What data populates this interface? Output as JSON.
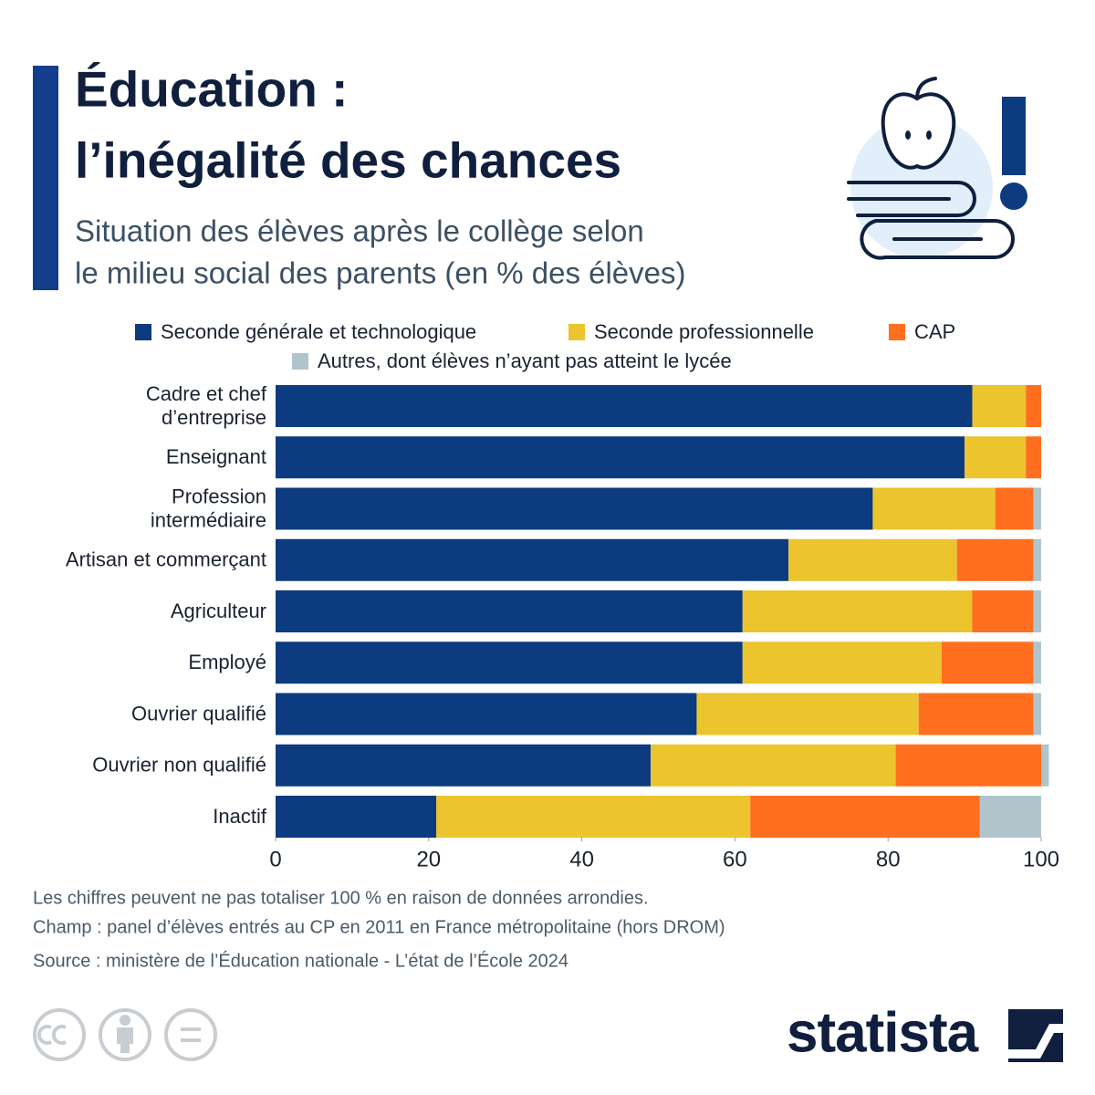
{
  "chart_data": {
    "type": "stacked_bar_horizontal",
    "title_lines": [
      "Éducation :",
      "l’inégalité des chances"
    ],
    "subtitle_lines": [
      "Situation des élèves après le collège selon",
      "le milieu social des parents (en % des élèves)"
    ],
    "categories": [
      [
        "Cadre et chef",
        "d’entreprise"
      ],
      [
        "Enseignant"
      ],
      [
        "Profession",
        "intermédiaire"
      ],
      [
        "Artisan et commerçant"
      ],
      [
        "Agriculteur"
      ],
      [
        "Employé"
      ],
      [
        "Ouvrier qualifié"
      ],
      [
        "Ouvrier non qualifié"
      ],
      [
        "Inactif"
      ]
    ],
    "series": [
      {
        "name": "Seconde générale et technologique",
        "color": "#0d3b7f",
        "values": [
          91,
          90,
          78,
          67,
          61,
          61,
          55,
          49,
          21
        ]
      },
      {
        "name": "Seconde professionnelle",
        "color": "#ebc42e",
        "values": [
          7,
          8,
          16,
          22,
          30,
          26,
          29,
          32,
          41
        ]
      },
      {
        "name": "CAP",
        "color": "#ff6f1f",
        "values": [
          2,
          2,
          5,
          10,
          8,
          12,
          15,
          19,
          30
        ]
      },
      {
        "name": "Autres, dont élèves n’ayant pas atteint le lycée",
        "color": "#b0c4cc",
        "values": [
          0,
          0,
          1,
          1,
          1,
          1,
          1,
          1,
          8
        ]
      }
    ],
    "xlim": [
      0,
      100
    ],
    "xticks": [
      0,
      20,
      40,
      60,
      80,
      100
    ],
    "notes": [
      "Les chiffres peuvent ne pas totaliser 100 % en raison de données arrondies.",
      "Champ : panel d’élèves entrés au CP en 2011 en France métropolitaine (hors DROM)"
    ],
    "source": "Source : ministère de l’Éducation nationale - L’état de l’École 2024",
    "brand": "statista"
  }
}
